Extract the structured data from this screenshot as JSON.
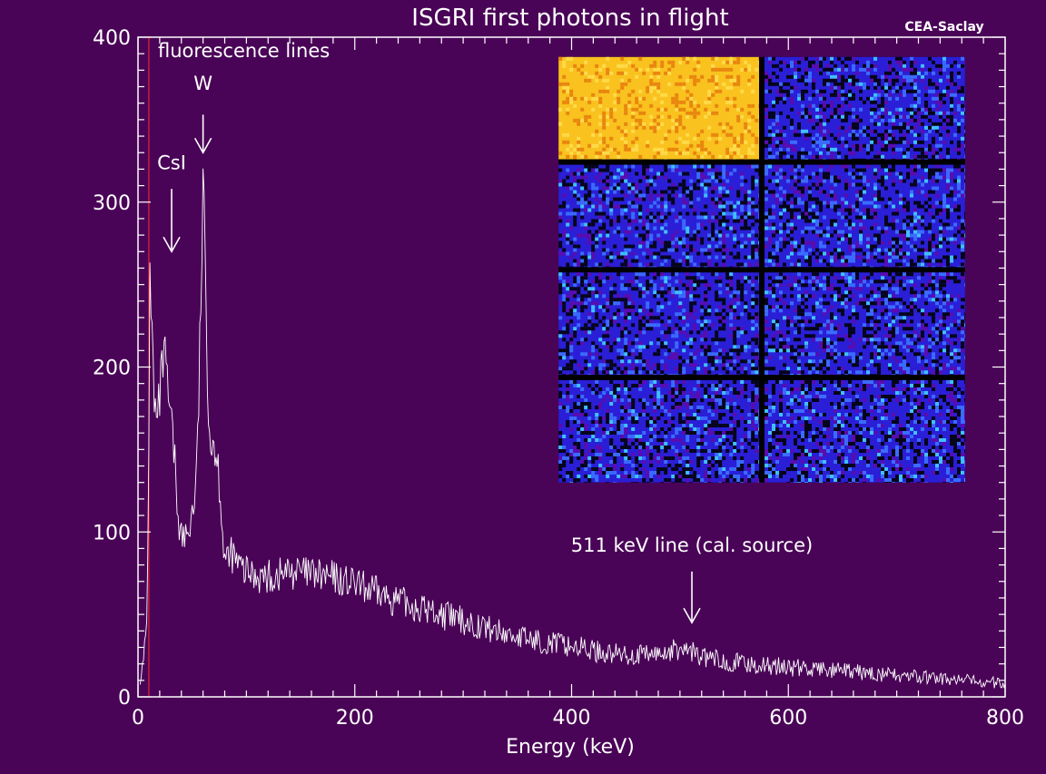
{
  "chart_data": {
    "type": "line",
    "title": "ISGRI first photons in flight",
    "credit": "CEA-Saclay",
    "xlabel": "Energy (keV)",
    "ylabel": "",
    "xlim": [
      0,
      800
    ],
    "ylim": [
      0,
      400
    ],
    "x_ticks": [
      0,
      200,
      400,
      600,
      800
    ],
    "y_ticks": [
      0,
      100,
      200,
      300,
      400
    ],
    "grid": false,
    "series": [
      {
        "values": [
          [
            2,
            12
          ],
          [
            5,
            20
          ],
          [
            8,
            45
          ],
          [
            10,
            140
          ],
          [
            11,
            275
          ],
          [
            12,
            240
          ],
          [
            13,
            220
          ],
          [
            15,
            175
          ],
          [
            18,
            165
          ],
          [
            21,
            190
          ],
          [
            24,
            208
          ],
          [
            26,
            195
          ],
          [
            28,
            180
          ],
          [
            30,
            168
          ],
          [
            33,
            150
          ],
          [
            36,
            120
          ],
          [
            39,
            100
          ],
          [
            42,
            95
          ],
          [
            45,
            98
          ],
          [
            48,
            105
          ],
          [
            51,
            115
          ],
          [
            54,
            135
          ],
          [
            56,
            180
          ],
          [
            58,
            240
          ],
          [
            60,
            310
          ],
          [
            62,
            260
          ],
          [
            64,
            200
          ],
          [
            66,
            165
          ],
          [
            68,
            150
          ],
          [
            70,
            160
          ],
          [
            72,
            145
          ],
          [
            74,
            140
          ],
          [
            76,
            125
          ],
          [
            78,
            100
          ],
          [
            80,
            85
          ],
          [
            83,
            80
          ],
          [
            86,
            88
          ],
          [
            90,
            82
          ],
          [
            95,
            78
          ],
          [
            100,
            75
          ],
          [
            110,
            74
          ],
          [
            120,
            72
          ],
          [
            130,
            74
          ],
          [
            140,
            76
          ],
          [
            150,
            75
          ],
          [
            160,
            74
          ],
          [
            170,
            73
          ],
          [
            180,
            72
          ],
          [
            190,
            70
          ],
          [
            200,
            68
          ],
          [
            220,
            63
          ],
          [
            240,
            58
          ],
          [
            260,
            54
          ],
          [
            280,
            50
          ],
          [
            300,
            46
          ],
          [
            320,
            42
          ],
          [
            340,
            38
          ],
          [
            360,
            35
          ],
          [
            380,
            33
          ],
          [
            400,
            31
          ],
          [
            420,
            28
          ],
          [
            440,
            26
          ],
          [
            460,
            25
          ],
          [
            480,
            26
          ],
          [
            500,
            29
          ],
          [
            510,
            28
          ],
          [
            520,
            24
          ],
          [
            540,
            22
          ],
          [
            560,
            20
          ],
          [
            580,
            19
          ],
          [
            600,
            18
          ],
          [
            620,
            17
          ],
          [
            640,
            16
          ],
          [
            660,
            15
          ],
          [
            680,
            14
          ],
          [
            700,
            13
          ],
          [
            720,
            12
          ],
          [
            740,
            11
          ],
          [
            760,
            10
          ],
          [
            780,
            9
          ],
          [
            800,
            8
          ]
        ]
      }
    ],
    "annotations": [
      {
        "text": "fluorescence lines",
        "x": 0,
        "y": 388
      },
      {
        "text": "W",
        "x": 60,
        "y": 368,
        "arrow_from": 353,
        "arrow_to": 330
      },
      {
        "text": "CsI",
        "x": 31,
        "y": 320,
        "arrow_from": 308,
        "arrow_to": 270
      },
      {
        "text": "511 keV line (cal. source)",
        "x": 511,
        "y": 88,
        "arrow_from": 76,
        "arrow_to": 45
      }
    ]
  },
  "inset": {
    "description_free": true,
    "x_range": [
      388,
      763
    ],
    "y_range": [
      130,
      388
    ],
    "columns": 2,
    "rows": 4,
    "colors": {
      "hot_module": "#f9c21f",
      "hot_module_dark": "#e8860f",
      "cold_module": "#2a1fd6",
      "cold_module_light": "#3a6cff",
      "gap": "#000000"
    },
    "hot_cell": [
      0,
      0
    ]
  },
  "colors": {
    "background": "#4a0457",
    "foreground": "#ffffff",
    "zero_line": "#ff2a2a"
  }
}
